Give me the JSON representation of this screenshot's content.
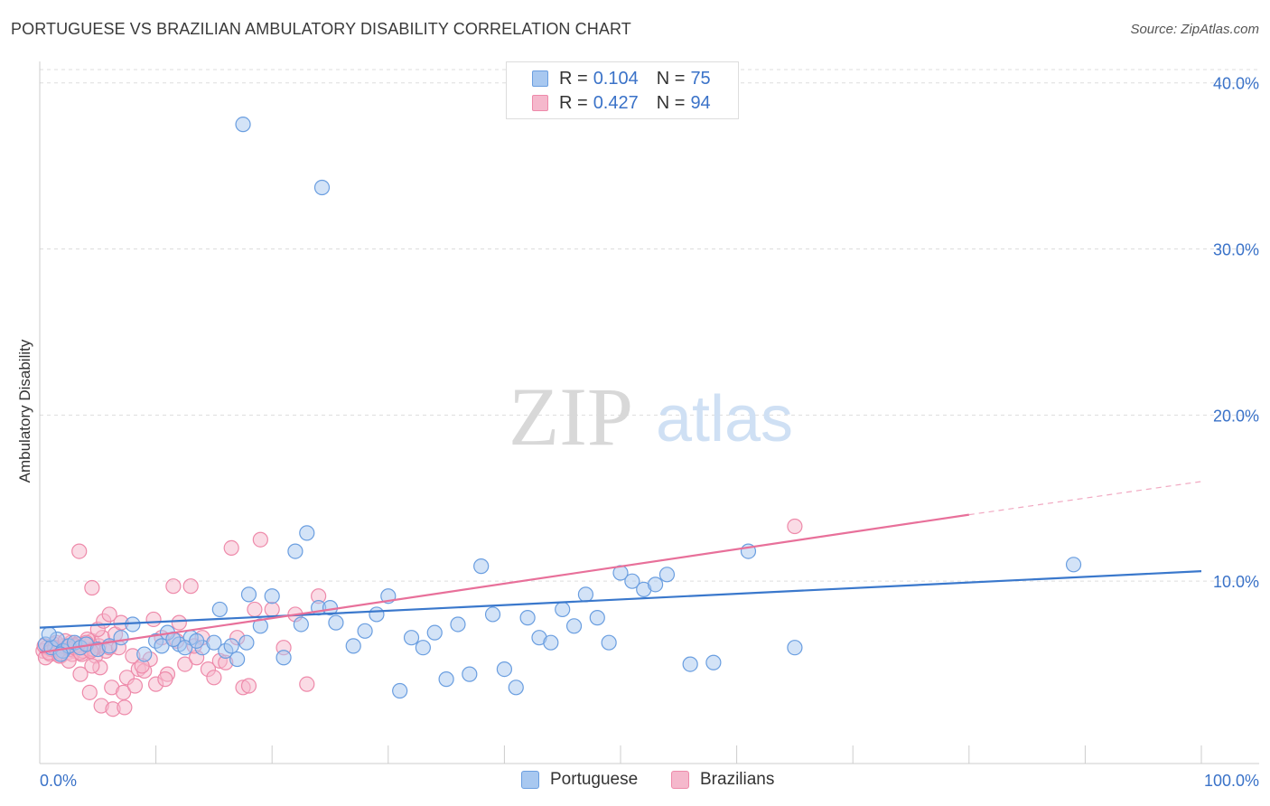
{
  "title": "PORTUGUESE VS BRAZILIAN AMBULATORY DISABILITY CORRELATION CHART",
  "source": "Source: ZipAtlas.com",
  "watermark": {
    "zip": "ZIP",
    "atlas": "atlas"
  },
  "colors": {
    "blue_fill": "#a8c8f0",
    "blue_stroke": "#6a9ee0",
    "blue_line": "#3a78cc",
    "pink_fill": "#f5b8cc",
    "pink_stroke": "#ee8aaa",
    "pink_line": "#e8709a",
    "axis_text": "#3a72c8",
    "grid": "#dddddd"
  },
  "legend": {
    "rows": [
      {
        "r_label": "R =",
        "r_value": "0.104",
        "n_label": "N =",
        "n_value": "75",
        "color": "#a8c8f0",
        "stroke": "#6a9ee0"
      },
      {
        "r_label": "R =",
        "r_value": "0.427",
        "n_label": "N =",
        "n_value": "94",
        "color": "#f5b8cc",
        "stroke": "#ee8aaa"
      }
    ]
  },
  "bottom_legend": [
    {
      "label": "Portuguese",
      "color": "#a8c8f0",
      "stroke": "#6a9ee0"
    },
    {
      "label": "Brazilians",
      "color": "#f5b8cc",
      "stroke": "#ee8aaa"
    }
  ],
  "chart_data": {
    "type": "scatter",
    "title": "PORTUGUESE VS BRAZILIAN AMBULATORY DISABILITY CORRELATION CHART",
    "xlabel": "",
    "ylabel": "Ambulatory Disability",
    "xlim": [
      0,
      100
    ],
    "ylim": [
      0,
      40.8
    ],
    "x_tick_labels": [
      "0.0%",
      "100.0%"
    ],
    "y_ticks": [
      10,
      20,
      30,
      40
    ],
    "y_tick_labels": [
      "10.0%",
      "20.0%",
      "30.0%",
      "40.0%"
    ],
    "grid": true,
    "series": [
      {
        "name": "Portuguese",
        "R": 0.104,
        "N": 75,
        "trend": {
          "x0": 0,
          "y0": 7.2,
          "x1": 100,
          "y1": 10.6
        },
        "points": [
          [
            0.5,
            6.2
          ],
          [
            1.0,
            6.0
          ],
          [
            1.5,
            6.5
          ],
          [
            2.0,
            5.8
          ],
          [
            2.5,
            6.1
          ],
          [
            3.0,
            6.3
          ],
          [
            3.5,
            6.0
          ],
          [
            4.0,
            6.2
          ],
          [
            0.8,
            6.8
          ],
          [
            1.8,
            5.6
          ],
          [
            5.0,
            5.9
          ],
          [
            6.0,
            6.1
          ],
          [
            7.0,
            6.6
          ],
          [
            8.0,
            7.4
          ],
          [
            9.0,
            5.6
          ],
          [
            10.0,
            6.4
          ],
          [
            11.0,
            6.9
          ],
          [
            12.0,
            6.2
          ],
          [
            13.0,
            6.6
          ],
          [
            14.0,
            6.0
          ],
          [
            15.0,
            6.3
          ],
          [
            16.0,
            5.8
          ],
          [
            17.0,
            5.3
          ],
          [
            10.5,
            6.1
          ],
          [
            11.5,
            6.5
          ],
          [
            12.5,
            6.0
          ],
          [
            13.5,
            6.4
          ],
          [
            15.5,
            8.3
          ],
          [
            16.5,
            6.1
          ],
          [
            17.8,
            6.3
          ],
          [
            18.0,
            9.2
          ],
          [
            19.0,
            7.3
          ],
          [
            20.0,
            9.1
          ],
          [
            21.0,
            5.4
          ],
          [
            22.0,
            11.8
          ],
          [
            22.5,
            7.4
          ],
          [
            23.0,
            12.9
          ],
          [
            24.0,
            8.4
          ],
          [
            25.0,
            8.4
          ],
          [
            25.5,
            7.5
          ],
          [
            17.5,
            37.5
          ],
          [
            24.3,
            33.7
          ],
          [
            27.0,
            6.1
          ],
          [
            28.0,
            7.0
          ],
          [
            29.0,
            8.0
          ],
          [
            30.0,
            9.1
          ],
          [
            31.0,
            3.4
          ],
          [
            32.0,
            6.6
          ],
          [
            33.0,
            6.0
          ],
          [
            34.0,
            6.9
          ],
          [
            35.0,
            4.1
          ],
          [
            36.0,
            7.4
          ],
          [
            37.0,
            4.4
          ],
          [
            38.0,
            10.9
          ],
          [
            39.0,
            8.0
          ],
          [
            40.0,
            4.7
          ],
          [
            41.0,
            3.6
          ],
          [
            42.0,
            7.8
          ],
          [
            43.0,
            6.6
          ],
          [
            44.0,
            6.3
          ],
          [
            45.0,
            8.3
          ],
          [
            46.0,
            7.3
          ],
          [
            47.0,
            9.2
          ],
          [
            48.0,
            7.8
          ],
          [
            49.0,
            6.3
          ],
          [
            50.0,
            10.5
          ],
          [
            51.0,
            10.0
          ],
          [
            52.0,
            9.5
          ],
          [
            53.0,
            9.8
          ],
          [
            54.0,
            10.4
          ],
          [
            56.0,
            5.0
          ],
          [
            58.0,
            5.1
          ],
          [
            61.0,
            11.8
          ],
          [
            65.0,
            6.0
          ],
          [
            89.0,
            11.0
          ]
        ]
      },
      {
        "name": "Brazilians",
        "R": 0.427,
        "N": 94,
        "trend": {
          "x0": 0,
          "y0": 5.7,
          "x1": 80,
          "y1": 14.0,
          "dash_x1": 100,
          "dash_y1": 16.0
        },
        "points": [
          [
            0.3,
            5.8
          ],
          [
            0.6,
            6.0
          ],
          [
            0.9,
            5.6
          ],
          [
            1.2,
            6.2
          ],
          [
            1.5,
            5.9
          ],
          [
            1.8,
            5.5
          ],
          [
            2.1,
            6.1
          ],
          [
            2.4,
            5.7
          ],
          [
            2.7,
            6.3
          ],
          [
            3.0,
            5.8
          ],
          [
            3.3,
            6.0
          ],
          [
            3.6,
            5.6
          ],
          [
            3.9,
            6.2
          ],
          [
            4.2,
            5.9
          ],
          [
            4.5,
            6.4
          ],
          [
            4.8,
            5.5
          ],
          [
            5.1,
            6.1
          ],
          [
            5.4,
            6.6
          ],
          [
            5.7,
            5.8
          ],
          [
            6.0,
            6.0
          ],
          [
            0.5,
            5.4
          ],
          [
            1.0,
            5.9
          ],
          [
            1.4,
            6.3
          ],
          [
            1.9,
            5.7
          ],
          [
            2.3,
            6.0
          ],
          [
            2.8,
            5.6
          ],
          [
            3.2,
            6.2
          ],
          [
            3.7,
            5.8
          ],
          [
            4.1,
            6.5
          ],
          [
            4.6,
            5.9
          ],
          [
            0.4,
            6.1
          ],
          [
            0.8,
            5.7
          ],
          [
            1.3,
            6.0
          ],
          [
            1.7,
            5.5
          ],
          [
            2.2,
            6.4
          ],
          [
            2.6,
            5.9
          ],
          [
            3.1,
            6.1
          ],
          [
            3.5,
            5.7
          ],
          [
            4.0,
            6.3
          ],
          [
            4.4,
            5.8
          ],
          [
            3.4,
            11.8
          ],
          [
            4.5,
            9.6
          ],
          [
            5.0,
            7.1
          ],
          [
            5.5,
            7.6
          ],
          [
            6.0,
            8.0
          ],
          [
            6.5,
            6.8
          ],
          [
            7.0,
            7.5
          ],
          [
            7.5,
            4.2
          ],
          [
            8.0,
            5.5
          ],
          [
            8.5,
            4.7
          ],
          [
            9.0,
            4.6
          ],
          [
            9.5,
            5.3
          ],
          [
            10.0,
            3.8
          ],
          [
            10.5,
            6.6
          ],
          [
            11.0,
            4.4
          ],
          [
            11.5,
            9.7
          ],
          [
            12.0,
            7.5
          ],
          [
            12.5,
            5.0
          ],
          [
            13.0,
            9.7
          ],
          [
            13.5,
            5.4
          ],
          [
            14.0,
            6.6
          ],
          [
            14.5,
            4.7
          ],
          [
            15.0,
            4.2
          ],
          [
            15.5,
            5.2
          ],
          [
            16.0,
            5.1
          ],
          [
            16.5,
            12.0
          ],
          [
            17.0,
            6.6
          ],
          [
            17.5,
            3.6
          ],
          [
            18.0,
            3.7
          ],
          [
            18.5,
            8.3
          ],
          [
            19.0,
            12.5
          ],
          [
            20.0,
            8.3
          ],
          [
            21.0,
            6.0
          ],
          [
            22.0,
            8.0
          ],
          [
            23.0,
            3.8
          ],
          [
            24.0,
            9.1
          ],
          [
            5.2,
            4.8
          ],
          [
            6.2,
            3.6
          ],
          [
            7.2,
            3.3
          ],
          [
            8.2,
            3.7
          ],
          [
            4.3,
            3.3
          ],
          [
            5.3,
            2.5
          ],
          [
            6.3,
            2.3
          ],
          [
            7.3,
            2.4
          ],
          [
            2.5,
            5.2
          ],
          [
            3.5,
            4.4
          ],
          [
            4.5,
            4.9
          ],
          [
            6.8,
            6.0
          ],
          [
            9.8,
            7.7
          ],
          [
            11.8,
            6.4
          ],
          [
            8.8,
            4.9
          ],
          [
            10.8,
            4.1
          ],
          [
            13.3,
            6.1
          ],
          [
            65.0,
            13.3
          ]
        ]
      }
    ]
  }
}
